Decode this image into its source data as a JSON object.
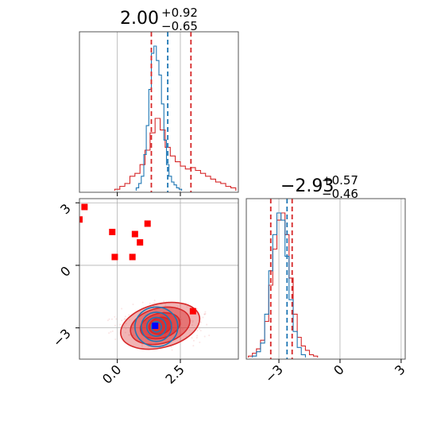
{
  "colors": {
    "red": "#d62728",
    "blue": "#1f77b4",
    "marker_red": "#ff0000",
    "marker_blue": "#0000ff",
    "grid": "#b0b0b0"
  },
  "chart_data": [
    {
      "type": "histogram",
      "panel": "top-left",
      "title": {
        "value": "2.00",
        "plus": "+0.92",
        "minus": "−0.65"
      },
      "xlim": [
        -1.5,
        4.8
      ],
      "grid": true,
      "vlines": {
        "red": [
          1.35,
          2.92
        ],
        "blue": [
          2.0
        ]
      },
      "series": [
        {
          "color": "red",
          "x": [
            0.0,
            0.2,
            0.4,
            0.6,
            0.8,
            1.0,
            1.2,
            1.4,
            1.6,
            1.8,
            2.0,
            2.2,
            2.4,
            2.6,
            2.8,
            3.0,
            3.2,
            3.4,
            3.6,
            3.8,
            4.0,
            4.2,
            4.4,
            4.6
          ],
          "values": [
            0.01,
            0.03,
            0.05,
            0.1,
            0.12,
            0.18,
            0.28,
            0.4,
            0.5,
            0.42,
            0.3,
            0.24,
            0.2,
            0.17,
            0.15,
            0.16,
            0.14,
            0.12,
            0.1,
            0.08,
            0.06,
            0.05,
            0.03,
            0.02
          ]
        },
        {
          "color": "blue",
          "x": [
            0.8,
            0.9,
            1.0,
            1.1,
            1.2,
            1.3,
            1.4,
            1.5,
            1.6,
            1.7,
            1.8,
            1.9,
            2.0,
            2.1,
            2.2,
            2.3,
            2.4,
            2.5
          ],
          "values": [
            0.02,
            0.05,
            0.1,
            0.25,
            0.45,
            0.7,
            0.95,
            1.0,
            0.9,
            0.8,
            0.6,
            0.35,
            0.18,
            0.1,
            0.06,
            0.04,
            0.02,
            0.01
          ]
        }
      ]
    },
    {
      "type": "histogram",
      "panel": "bottom-right",
      "title": {
        "value": "−2.93",
        "plus": "+0.57",
        "minus": "−0.46"
      },
      "xlim": [
        -4.6,
        3.2
      ],
      "xticks": [
        -3,
        0,
        3
      ],
      "xtick_labels": [
        "−3",
        "0",
        "3"
      ],
      "grid": true,
      "vlines": {
        "red": [
          -3.4,
          -2.35
        ],
        "blue": [
          -2.6
        ]
      },
      "series": [
        {
          "color": "red",
          "x": [
            -4.4,
            -4.2,
            -4.0,
            -3.8,
            -3.6,
            -3.4,
            -3.2,
            -3.0,
            -2.8,
            -2.6,
            -2.4,
            -2.2,
            -2.0,
            -1.8,
            -1.6,
            -1.4,
            -1.2
          ],
          "values": [
            0.01,
            0.03,
            0.06,
            0.12,
            0.25,
            0.5,
            0.75,
            0.95,
            1.0,
            0.85,
            0.55,
            0.3,
            0.14,
            0.08,
            0.05,
            0.02,
            0.01
          ]
        },
        {
          "color": "blue",
          "x": [
            -4.2,
            -4.0,
            -3.8,
            -3.6,
            -3.4,
            -3.2,
            -3.0,
            -2.8,
            -2.6,
            -2.4,
            -2.2,
            -2.0,
            -1.8
          ],
          "values": [
            0.01,
            0.04,
            0.1,
            0.3,
            0.6,
            0.85,
            1.0,
            0.95,
            0.7,
            0.4,
            0.18,
            0.07,
            0.02
          ]
        }
      ]
    },
    {
      "type": "scatter",
      "panel": "bottom-left",
      "xlim": [
        -1.5,
        4.8
      ],
      "ylim": [
        -4.5,
        3.2
      ],
      "xticks": [
        0.0,
        2.5
      ],
      "xtick_labels": [
        "0.0",
        "2.5"
      ],
      "yticks": [
        -3,
        0,
        3
      ],
      "ytick_labels": [
        "−3",
        "0",
        "3"
      ],
      "grid": true,
      "red_squares": [
        {
          "x": -1.5,
          "y": 2.2
        },
        {
          "x": -1.3,
          "y": 2.8
        },
        {
          "x": -0.2,
          "y": 1.6
        },
        {
          "x": -0.1,
          "y": 0.4
        },
        {
          "x": 0.6,
          "y": 0.4
        },
        {
          "x": 0.7,
          "y": 1.5
        },
        {
          "x": 0.9,
          "y": 1.1
        },
        {
          "x": 1.2,
          "y": 2.0
        },
        {
          "x": 3.0,
          "y": -2.2
        }
      ],
      "blue_square": {
        "x": 1.5,
        "y": -2.9
      },
      "contours": [
        {
          "color": "red",
          "style": "filled",
          "center": {
            "x": 1.7,
            "y": -2.9
          },
          "levels": [
            {
              "rx": 1.6,
              "ry": 1.05,
              "opacity": 0.35
            },
            {
              "rx": 1.2,
              "ry": 0.85,
              "opacity": 0.45
            },
            {
              "rx": 0.8,
              "ry": 0.6,
              "opacity": 0.55
            },
            {
              "rx": 0.45,
              "ry": 0.4,
              "opacity": 0.7
            }
          ]
        },
        {
          "color": "blue",
          "style": "lines",
          "center": {
            "x": 1.55,
            "y": -2.95
          },
          "levels": [
            {
              "rx": 0.85,
              "ry": 0.95
            },
            {
              "rx": 0.6,
              "ry": 0.7
            },
            {
              "rx": 0.38,
              "ry": 0.45
            },
            {
              "rx": 0.2,
              "ry": 0.25
            }
          ]
        }
      ]
    }
  ]
}
